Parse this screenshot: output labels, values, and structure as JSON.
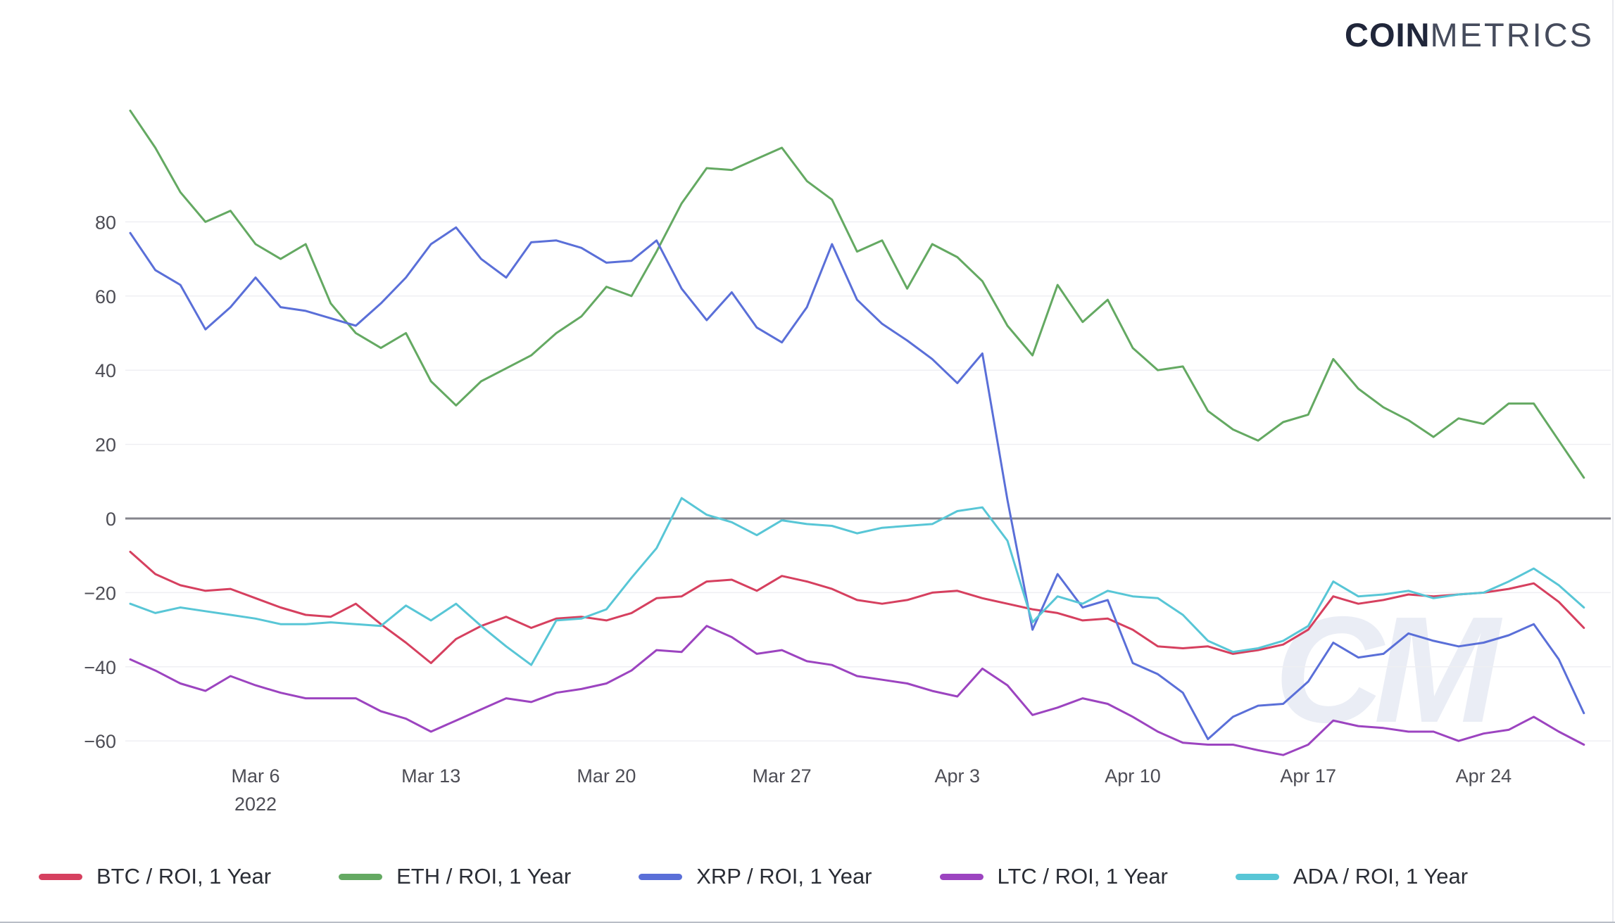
{
  "logo": {
    "coin": "COIN",
    "metrics": "METRICS"
  },
  "watermark": "CM",
  "chart_data": {
    "type": "line",
    "title": "",
    "xlabel": "",
    "ylabel": "",
    "grid": true,
    "legend_position": "bottom",
    "ylim": [
      -68,
      114
    ],
    "y_ticks": [
      80,
      60,
      40,
      20,
      0,
      -20,
      -40,
      -60
    ],
    "zero_line_color": "#85858d",
    "x_year_label": "2022",
    "x_tick_labels": [
      "Mar 6",
      "Mar 13",
      "Mar 20",
      "Mar 27",
      "Apr 3",
      "Apr 10",
      "Apr 17",
      "Apr 24"
    ],
    "x_tick_days": [
      5,
      12,
      19,
      26,
      33,
      40,
      47,
      54
    ],
    "x": [
      "Mar 1",
      "Mar 2",
      "Mar 3",
      "Mar 4",
      "Mar 5",
      "Mar 6",
      "Mar 7",
      "Mar 8",
      "Mar 9",
      "Mar 10",
      "Mar 11",
      "Mar 12",
      "Mar 13",
      "Mar 14",
      "Mar 15",
      "Mar 16",
      "Mar 17",
      "Mar 18",
      "Mar 19",
      "Mar 20",
      "Mar 21",
      "Mar 22",
      "Mar 23",
      "Mar 24",
      "Mar 25",
      "Mar 26",
      "Mar 27",
      "Mar 28",
      "Mar 29",
      "Mar 30",
      "Mar 31",
      "Apr 1",
      "Apr 2",
      "Apr 3",
      "Apr 4",
      "Apr 5",
      "Apr 6",
      "Apr 7",
      "Apr 8",
      "Apr 9",
      "Apr 10",
      "Apr 11",
      "Apr 12",
      "Apr 13",
      "Apr 14",
      "Apr 15",
      "Apr 16",
      "Apr 17",
      "Apr 18",
      "Apr 19",
      "Apr 20",
      "Apr 21",
      "Apr 22",
      "Apr 23",
      "Apr 24",
      "Apr 25",
      "Apr 26",
      "Apr 27",
      "Apr 28"
    ],
    "series": [
      {
        "name": "BTC / ROI, 1 Year",
        "color": "#d6405f",
        "values": [
          -9,
          -15,
          -18,
          -19.5,
          -19,
          -21.5,
          -24,
          -26,
          -26.5,
          -23,
          -28.5,
          -33.5,
          -39,
          -32.5,
          -29,
          -26.5,
          -29.5,
          -27,
          -26.5,
          -27.5,
          -25.5,
          -21.5,
          -21,
          -17,
          -16.5,
          -19.5,
          -15.5,
          -17,
          -19,
          -22,
          -23,
          -22,
          -20,
          -19.5,
          -21.5,
          -23,
          -24.5,
          -25.5,
          -27.5,
          -27,
          -30,
          -34.5,
          -35,
          -34.5,
          -36.5,
          -35.5,
          -34,
          -30,
          -21,
          -23,
          -22,
          -20.5,
          -21,
          -20.5,
          -20,
          -19,
          -17.5,
          -22.5,
          -29.5
        ]
      },
      {
        "name": "ETH / ROI, 1 Year",
        "color": "#64a962",
        "values": [
          110,
          100,
          88,
          80,
          83,
          74,
          70,
          74,
          58,
          50,
          46,
          50,
          37,
          30.5,
          37,
          40.5,
          44,
          50,
          54.5,
          62.5,
          60,
          72,
          85,
          94.5,
          94,
          97,
          100,
          91,
          86,
          72,
          75,
          62,
          74,
          70.5,
          64,
          52,
          44,
          63,
          53,
          59,
          46,
          40,
          41,
          29,
          24,
          21,
          26,
          28,
          43,
          35,
          30,
          26.5,
          22,
          27,
          25.5,
          31,
          31,
          21,
          11
        ]
      },
      {
        "name": "XRP / ROI, 1 Year",
        "color": "#5a6fd8",
        "values": [
          77,
          67,
          63,
          51,
          57,
          65,
          57,
          56,
          54,
          52,
          58,
          65,
          74,
          78.5,
          70,
          65,
          74.5,
          75,
          73,
          69,
          69.5,
          75,
          62,
          53.5,
          61,
          51.5,
          47.5,
          57,
          74,
          59,
          52.5,
          48,
          43,
          36.5,
          44.5,
          5,
          -30,
          -15,
          -24,
          -22,
          -39,
          -42,
          -47,
          -59.5,
          -53.5,
          -50.5,
          -50,
          -44,
          -33.5,
          -37.5,
          -36.5,
          -31,
          -33,
          -34.5,
          -33.5,
          -31.5,
          -28.5,
          -38,
          -52.5
        ]
      },
      {
        "name": "LTC / ROI, 1 Year",
        "color": "#9c44c0",
        "values": [
          -38,
          -41,
          -44.5,
          -46.5,
          -42.5,
          -45,
          -47,
          -48.5,
          -48.5,
          -48.5,
          -52,
          -54,
          -57.5,
          -54.5,
          -51.5,
          -48.5,
          -49.5,
          -47,
          -46,
          -44.5,
          -41,
          -35.5,
          -36,
          -29,
          -32,
          -36.5,
          -35.5,
          -38.5,
          -39.5,
          -42.5,
          -43.5,
          -44.5,
          -46.5,
          -48,
          -40.5,
          -45,
          -53,
          -51,
          -48.5,
          -50,
          -53.5,
          -57.5,
          -60.5,
          -61,
          -61,
          -62.5,
          -63.8,
          -61,
          -54.5,
          -56,
          -56.5,
          -57.5,
          -57.5,
          -60,
          -58,
          -57,
          -53.5,
          -57.5,
          -61
        ]
      },
      {
        "name": "ADA / ROI, 1 Year",
        "color": "#58c6d6",
        "values": [
          -23,
          -25.5,
          -24,
          -25,
          -26,
          -27,
          -28.5,
          -28.5,
          -28,
          -28.5,
          -29,
          -23.5,
          -27.5,
          -23,
          -29,
          -34.5,
          -39.5,
          -27.5,
          -27,
          -24.5,
          -16,
          -8,
          5.5,
          1,
          -1,
          -4.5,
          -0.5,
          -1.5,
          -2,
          -4,
          -2.5,
          -2,
          -1.5,
          2,
          3,
          -6,
          -28,
          -21,
          -23,
          -19.5,
          -21,
          -21.5,
          -26,
          -33,
          -36,
          -35,
          -33,
          -29,
          -17,
          -21,
          -20.5,
          -19.5,
          -21.5,
          -20.5,
          -20,
          -17,
          -13.5,
          -18,
          -24
        ]
      }
    ]
  }
}
